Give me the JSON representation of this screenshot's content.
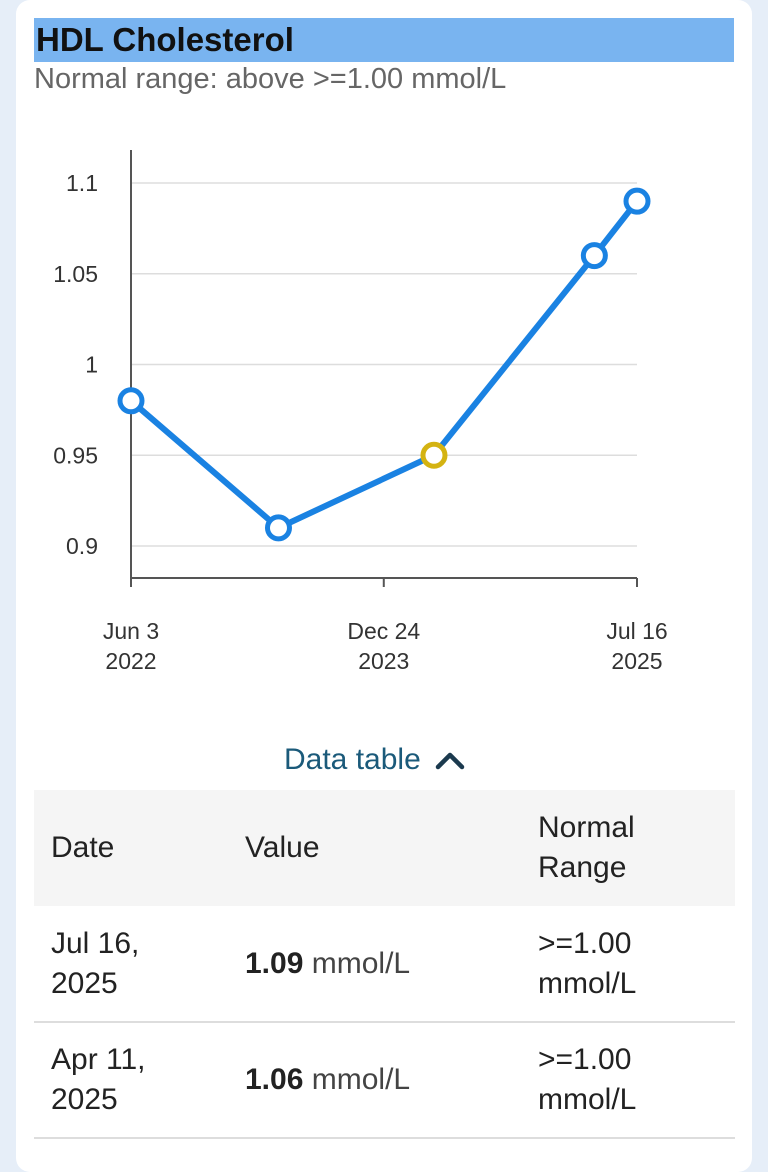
{
  "header": {
    "title": "HDL Cholesterol",
    "subtitle": "Normal range: above >=1.00 mmol/L"
  },
  "chart_data": {
    "type": "line",
    "title": "HDL Cholesterol",
    "xlabel": "",
    "ylabel": "",
    "y_ticks": [
      "0.9",
      "0.95",
      "1",
      "1.05",
      "1.1"
    ],
    "ylim": [
      0.88,
      1.12
    ],
    "x_ticks": [
      {
        "line1": "Jun 3",
        "line2": "2022",
        "date": "2022-06-03"
      },
      {
        "line1": "Dec 24",
        "line2": "2023",
        "date": "2023-12-24"
      },
      {
        "line1": "Jul 16",
        "line2": "2025",
        "date": "2025-07-16"
      }
    ],
    "grid": true,
    "colors": {
      "line": "#1a82e2",
      "highlight": "#d4b312",
      "grid": "#dddddd",
      "axis": "#555555"
    },
    "series": [
      {
        "points": [
          {
            "date": "2022-06-03",
            "value": 0.98
          },
          {
            "date": "2023-05-01",
            "value": 0.91
          },
          {
            "date": "2024-04-15",
            "value": 0.95,
            "highlighted": true
          },
          {
            "date": "2025-04-11",
            "value": 1.06
          },
          {
            "date": "2025-07-16",
            "value": 1.09
          }
        ]
      }
    ]
  },
  "data_table": {
    "toggle_label": "Data table",
    "toggle_icon": "chevron-up-icon",
    "headers": {
      "date": "Date",
      "value": "Value",
      "range_line1": "Normal",
      "range_line2": "Range"
    },
    "rows": [
      {
        "date_line1": "Jul 16,",
        "date_line2": "2025",
        "value": "1.09",
        "unit": "mmol/L",
        "range_line1": ">=1.00",
        "range_line2": "mmol/L"
      },
      {
        "date_line1": "Apr 11,",
        "date_line2": "2025",
        "value": "1.06",
        "unit": "mmol/L",
        "range_line1": ">=1.00",
        "range_line2": "mmol/L"
      }
    ]
  }
}
